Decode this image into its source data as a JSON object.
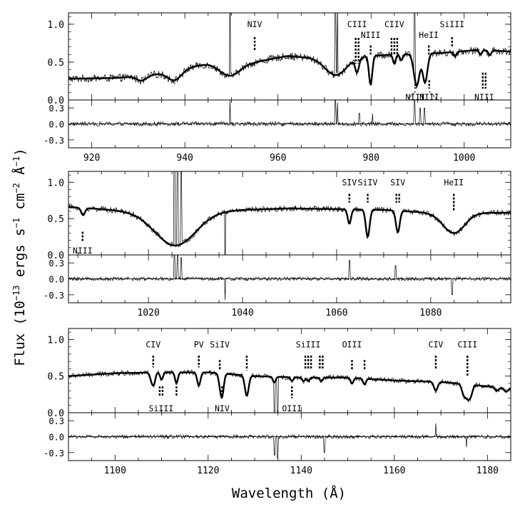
{
  "chart_data": {
    "type": "line",
    "figure_title": "",
    "xlabel": "Wavelength (Å)",
    "ylabel": "Flux (10⁻¹³ ergs s⁻¹ cm⁻² Å⁻¹)",
    "ylabel_parts": {
      "main": "Flux (10",
      "sup1": "−13",
      "mid1": " ergs s",
      "sup2": "−1",
      "mid2": " cm",
      "sup3": "−2",
      "mid3": " Å",
      "sup4": "−1",
      "end": ")"
    },
    "panels": [
      {
        "id": "panel-1",
        "xlim": [
          915,
          1010
        ],
        "flux_ylim": [
          0,
          1.15
        ],
        "flux_yticks": [
          "0.0",
          "0.5",
          "1.0"
        ],
        "resid_ylim": [
          -0.45,
          0.45
        ],
        "resid_yticks": [
          "0.3",
          "0.0",
          "-0.3"
        ],
        "xticks": [
          "920",
          "940",
          "960",
          "980",
          "1000"
        ],
        "model": {
          "continuum": [
            [
              915,
              0.28
            ],
            [
              925,
              0.29
            ],
            [
              932,
              0.32
            ],
            [
              945,
              0.48
            ],
            [
              955,
              0.5
            ],
            [
              962,
              0.58
            ],
            [
              970,
              0.54
            ],
            [
              980,
              0.58
            ],
            [
              985,
              0.6
            ],
            [
              995,
              0.62
            ],
            [
              1003,
              0.66
            ],
            [
              1010,
              0.64
            ]
          ],
          "absorptions": [
            [
              949.7,
              0.17,
              2.2
            ],
            [
              972.5,
              0.22,
              2.2
            ],
            [
              937.8,
              0.13,
              1.5
            ],
            [
              930.7,
              0.06,
              1.0
            ],
            [
              977.0,
              0.18,
              0.4
            ],
            [
              979.9,
              0.38,
              0.35
            ],
            [
              989.8,
              0.42,
              0.6
            ],
            [
              991.6,
              0.38,
              0.5
            ],
            [
              985.0,
              0.12,
              0.3
            ],
            [
              986.5,
              0.08,
              0.3
            ],
            [
              998.0,
              0.06,
              0.3
            ],
            [
              1003.5,
              0.06,
              0.3
            ],
            [
              1005.5,
              0.06,
              0.3
            ]
          ]
        },
        "spikes": [
          [
            949.7,
            1.6
          ],
          [
            972.3,
            1.4
          ],
          [
            972.8,
            1.3
          ],
          [
            989.3,
            1.5
          ]
        ],
        "noise": 0.05,
        "resid_noise": 0.04,
        "resid_spikes": [
          [
            949.7,
            0.45
          ],
          [
            972.3,
            0.45
          ],
          [
            972.8,
            0.4
          ],
          [
            977.5,
            0.2
          ],
          [
            980.3,
            0.2
          ],
          [
            989.3,
            0.45
          ],
          [
            990.5,
            0.3
          ],
          [
            991.5,
            0.3
          ]
        ],
        "line_ids": [
          {
            "label": "NIV",
            "wave": 955.0,
            "n": 1,
            "pos": "above",
            "label_y": 1.0,
            "tick_top": 0.83,
            "tick_bottom": 0.65
          },
          {
            "label": "CIII",
            "wave": 977.0,
            "n": 2,
            "pos": "above",
            "label_y": 1.0,
            "tick_top": 0.82,
            "tick_bottom": 0.48
          },
          {
            "label": "NIII",
            "wave": 979.9,
            "n": 1,
            "pos": "above",
            "label_y": 0.86,
            "tick_top": 0.72,
            "tick_bottom": 0.6
          },
          {
            "label": "CIIV",
            "wave": 985.0,
            "n": 3,
            "pos": "above",
            "label_y": 1.0,
            "tick_top": 0.82,
            "tick_bottom": 0.6
          },
          {
            "label": "HeII",
            "wave": 992.4,
            "n": 1,
            "pos": "above",
            "label_y": 0.86,
            "tick_top": 0.72,
            "tick_bottom": 0.6
          },
          {
            "label": "SiIII",
            "wave": 997.4,
            "n": 1,
            "pos": "above",
            "label_y": 1.0,
            "tick_top": 0.83,
            "tick_bottom": 0.71
          },
          {
            "label": "NIII",
            "wave": 989.5,
            "n": 1,
            "pos": "below",
            "label_y": 0.02,
            "tick_top": 0.26,
            "tick_bottom": 0.15,
            "diag": -1
          },
          {
            "label": "NIII",
            "wave": 992.5,
            "n": 1,
            "pos": "below",
            "label_y": 0.02,
            "tick_top": 0.26,
            "tick_bottom": 0.15,
            "diag": 1
          },
          {
            "label": "NIII",
            "wave": 1004.3,
            "n": 2,
            "pos": "below",
            "label_y": 0.02,
            "tick_top": 0.36,
            "tick_bottom": 0.15
          }
        ]
      },
      {
        "id": "panel-2",
        "xlim": [
          1003,
          1097
        ],
        "flux_ylim": [
          0,
          1.15
        ],
        "flux_yticks": [
          "0.0",
          "0.5",
          "1.0"
        ],
        "resid_ylim": [
          -0.45,
          0.45
        ],
        "resid_yticks": [
          "0.3",
          "0.0",
          "-0.3"
        ],
        "xticks": [
          "1020",
          "1040",
          "1060",
          "1080"
        ],
        "model": {
          "continuum": [
            [
              1003,
              0.66
            ],
            [
              1010,
              0.63
            ],
            [
              1020,
              0.58
            ],
            [
              1030,
              0.58
            ],
            [
              1040,
              0.62
            ],
            [
              1050,
              0.64
            ],
            [
              1060,
              0.63
            ],
            [
              1070,
              0.62
            ],
            [
              1080,
              0.58
            ],
            [
              1090,
              0.58
            ],
            [
              1097,
              0.58
            ]
          ],
          "absorptions": [
            [
              1025.7,
              0.45,
              4.2
            ],
            [
              1084.9,
              0.28,
              2.3
            ],
            [
              1006.1,
              0.1,
              0.4
            ],
            [
              1062.7,
              0.2,
              0.35
            ],
            [
              1066.6,
              0.38,
              0.4
            ],
            [
              1073.0,
              0.3,
              0.4
            ]
          ]
        },
        "spikes": [
          [
            1025.5,
            1.7
          ],
          [
            1026.2,
            1.6
          ],
          [
            1027.0,
            1.2
          ],
          [
            1036.3,
            -0.4
          ]
        ],
        "noise": 0.04,
        "resid_noise": 0.035,
        "resid_spikes": [
          [
            1025.5,
            0.45
          ],
          [
            1026.2,
            0.45
          ],
          [
            1027.0,
            0.4
          ],
          [
            1036.3,
            -0.4
          ],
          [
            1062.7,
            0.35
          ],
          [
            1072.5,
            0.25
          ],
          [
            1084.5,
            -0.3
          ]
        ],
        "line_ids": [
          {
            "label": "NIII",
            "wave": 1006.0,
            "n": 1,
            "pos": "below",
            "label_y": 0.04,
            "tick_top": 0.32,
            "tick_bottom": 0.18
          },
          {
            "label": "SIV",
            "wave": 1062.7,
            "n": 1,
            "pos": "above",
            "label_y": 1.0,
            "tick_top": 0.84,
            "tick_bottom": 0.72
          },
          {
            "label": "SiIV",
            "wave": 1066.6,
            "n": 1,
            "pos": "above",
            "label_y": 1.0,
            "tick_top": 0.84,
            "tick_bottom": 0.72
          },
          {
            "label": "SIV",
            "wave": 1073.0,
            "n": 2,
            "pos": "above",
            "label_y": 1.0,
            "tick_top": 0.84,
            "tick_bottom": 0.72
          },
          {
            "label": "HeII",
            "wave": 1084.9,
            "n": 1,
            "pos": "above",
            "label_y": 1.0,
            "tick_top": 0.84,
            "tick_bottom": 0.6
          }
        ]
      },
      {
        "id": "panel-3",
        "xlim": [
          1090,
          1185
        ],
        "flux_ylim": [
          0,
          1.15
        ],
        "flux_yticks": [
          "0.0",
          "0.5",
          "1.0"
        ],
        "resid_ylim": [
          -0.45,
          0.45
        ],
        "resid_yticks": [
          "0.3",
          "0.0",
          "-0.3"
        ],
        "xticks": [
          "1100",
          "1120",
          "1140",
          "1160",
          "1180"
        ],
        "model": {
          "continuum": [
            [
              1090,
              0.5
            ],
            [
              1100,
              0.54
            ],
            [
              1110,
              0.55
            ],
            [
              1120,
              0.55
            ],
            [
              1130,
              0.5
            ],
            [
              1140,
              0.48
            ],
            [
              1150,
              0.48
            ],
            [
              1160,
              0.44
            ],
            [
              1170,
              0.42
            ],
            [
              1180,
              0.36
            ],
            [
              1185,
              0.33
            ]
          ],
          "absorptions": [
            [
              1107.9,
              0.12,
              0.35
            ],
            [
              1108.4,
              0.12,
              0.3
            ],
            [
              1110.0,
              0.1,
              0.3
            ],
            [
              1113.2,
              0.15,
              0.3
            ],
            [
              1118.0,
              0.18,
              0.35
            ],
            [
              1122.5,
              0.1,
              0.3
            ],
            [
              1123.0,
              0.3,
              0.35
            ],
            [
              1128.3,
              0.28,
              0.4
            ],
            [
              1134.2,
              0.08,
              0.3
            ],
            [
              1138.0,
              0.05,
              0.3
            ],
            [
              1140.5,
              0.05,
              0.3
            ],
            [
              1141.5,
              0.05,
              0.3
            ],
            [
              1144.3,
              0.05,
              0.3
            ],
            [
              1150.9,
              0.08,
              0.3
            ],
            [
              1153.6,
              0.08,
              0.3
            ],
            [
              1168.9,
              0.12,
              0.4
            ],
            [
              1174.9,
              0.14,
              0.4
            ],
            [
              1175.7,
              0.16,
              0.4
            ],
            [
              1176.4,
              0.14,
              0.4
            ],
            [
              1182.0,
              0.05,
              0.4
            ],
            [
              1184.0,
              0.05,
              0.4
            ]
          ]
        },
        "spikes": [
          [
            1134.3,
            -0.15
          ],
          [
            1134.9,
            -0.2
          ]
        ],
        "noise": 0.035,
        "resid_noise": 0.035,
        "resid_spikes": [
          [
            1134.3,
            -0.35
          ],
          [
            1134.9,
            -0.4
          ],
          [
            1145.0,
            -0.3
          ],
          [
            1168.9,
            0.25
          ],
          [
            1175.5,
            -0.2
          ]
        ],
        "line_ids": [
          {
            "label": "CIV",
            "wave": 1108.2,
            "n": 1,
            "pos": "above",
            "label_y": 0.93,
            "tick_top": 0.78,
            "tick_bottom": 0.62
          },
          {
            "label": "PV",
            "wave": 1118.0,
            "n": 1,
            "pos": "above",
            "label_y": 0.93,
            "tick_top": 0.78,
            "tick_bottom": 0.62
          },
          {
            "label": "SiIV",
            "wave": 1122.5,
            "n": 1,
            "pos": "above",
            "label_y": 0.93,
            "tick_top": 0.72,
            "tick_bottom": 0.58
          },
          {
            "label": "SiIV",
            "wave": 1128.3,
            "n": 1,
            "pos": "above",
            "label_y": 0.93,
            "tick_top": 0.78,
            "tick_bottom": 0.58,
            "hide_label": true
          },
          {
            "label": "SiIII",
            "wave": 1141.5,
            "n": 3,
            "pos": "above",
            "label_y": 0.93,
            "tick_top": 0.78,
            "tick_bottom": 0.6
          },
          {
            "label": "SiIII",
            "wave": 1144.3,
            "n": 2,
            "pos": "above",
            "label_y": 0.93,
            "tick_top": 0.78,
            "tick_bottom": 0.6,
            "hide_label": true
          },
          {
            "label": "OIII",
            "wave": 1150.9,
            "n": 1,
            "pos": "above",
            "label_y": 0.93,
            "tick_top": 0.72,
            "tick_bottom": 0.58
          },
          {
            "label": "OIII",
            "wave": 1153.6,
            "n": 1,
            "pos": "above",
            "label_y": 0.93,
            "tick_top": 0.72,
            "tick_bottom": 0.58,
            "hide_label": true
          },
          {
            "label": "CIV",
            "wave": 1168.9,
            "n": 1,
            "pos": "above",
            "label_y": 0.93,
            "tick_top": 0.78,
            "tick_bottom": 0.6
          },
          {
            "label": "CIII",
            "wave": 1175.7,
            "n": 1,
            "pos": "above",
            "label_y": 0.93,
            "tick_top": 0.78,
            "tick_bottom": 0.5
          },
          {
            "label": "SiIII",
            "wave": 1109.9,
            "n": 2,
            "pos": "below",
            "label_y": 0.04,
            "tick_top": 0.36,
            "tick_bottom": 0.22
          },
          {
            "label": "SiIII",
            "wave": 1113.2,
            "n": 1,
            "pos": "below",
            "label_y": 0.04,
            "tick_top": 0.36,
            "tick_bottom": 0.22,
            "hide_label": true
          },
          {
            "label": "NIV",
            "wave": 1123.0,
            "n": 1,
            "pos": "below",
            "label_y": 0.04,
            "tick_top": 0.36,
            "tick_bottom": 0.2
          },
          {
            "label": "OIII",
            "wave": 1138.0,
            "n": 1,
            "pos": "below",
            "label_y": 0.04,
            "tick_top": 0.36,
            "tick_bottom": 0.2
          }
        ]
      }
    ]
  }
}
